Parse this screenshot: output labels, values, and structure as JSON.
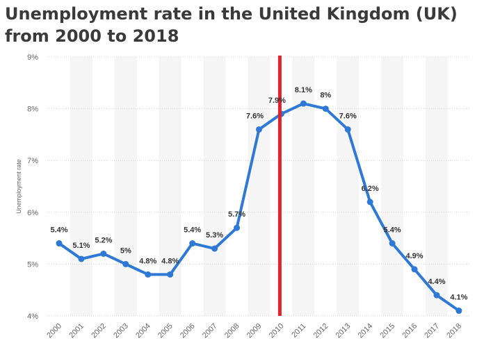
{
  "chart_data": {
    "type": "line",
    "title": "Unemployment rate in the United Kingdom (UK) from 2000 to 2018",
    "xlabel": "",
    "ylabel": "Unemployment rate",
    "categories": [
      "2000",
      "2001",
      "2002",
      "2003",
      "2004",
      "2005",
      "2006",
      "2007",
      "2008",
      "2009",
      "2010",
      "2011",
      "2012",
      "2013",
      "2014",
      "2015",
      "2016",
      "2017",
      "2018"
    ],
    "series": [
      {
        "name": "Unemployment rate",
        "values": [
          5.4,
          5.1,
          5.2,
          5.0,
          4.8,
          4.8,
          5.4,
          5.3,
          5.7,
          7.6,
          7.9,
          8.1,
          8.0,
          7.6,
          6.2,
          5.4,
          4.9,
          4.4,
          4.1
        ]
      }
    ],
    "data_labels": [
      "5.4%",
      "5.1%",
      "5.2%",
      "5%",
      "4.8%",
      "4.8%",
      "5.4%",
      "5.3%",
      "5.7%",
      "7.6%",
      "7.9%",
      "8.1%",
      "8%",
      "7.6%",
      "6.2%",
      "5.4%",
      "4.9%",
      "4.4%",
      "4.1%"
    ],
    "y_ticks": [
      4,
      5,
      6,
      7,
      8,
      9
    ],
    "y_tick_labels": [
      "4%",
      "5%",
      "6%",
      "7%",
      "8%",
      "9%"
    ],
    "ylim": [
      4,
      9
    ],
    "grid": true,
    "reference_line": {
      "category": "2010"
    },
    "colors": {
      "line": "#2e78d6",
      "marker": "#2e78d6",
      "reference": "#e0242b",
      "band": "#f5f5f5",
      "grid": "#d4d4d4"
    }
  }
}
